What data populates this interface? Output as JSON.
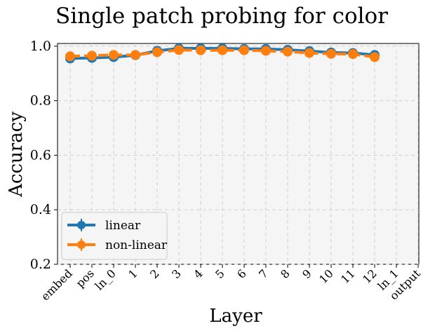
{
  "chart_data": {
    "type": "line",
    "title": "Single patch probing for color",
    "xlabel": "Layer",
    "ylabel": "Accuracy",
    "categories": [
      "embed",
      "pos",
      "ln_0",
      "1",
      "2",
      "3",
      "4",
      "5",
      "6",
      "7",
      "8",
      "9",
      "10",
      "11",
      "12",
      "ln_1",
      "output"
    ],
    "ylim": [
      0.2,
      1.01
    ],
    "yticks": [
      "0.2",
      "0.4",
      "0.6",
      "0.8",
      "1.0"
    ],
    "grid": true,
    "legend_position": "lower-left",
    "series": [
      {
        "name": "linear",
        "color": "#1f77b4",
        "values": [
          0.955,
          0.957,
          0.96,
          0.967,
          0.983,
          0.992,
          0.992,
          0.992,
          0.99,
          0.99,
          0.987,
          0.982,
          0.977,
          0.975,
          0.968,
          null,
          null
        ]
      },
      {
        "name": "non-linear",
        "color": "#ff7f0e",
        "values": [
          0.963,
          0.965,
          0.968,
          0.968,
          0.978,
          0.986,
          0.985,
          0.985,
          0.985,
          0.983,
          0.98,
          0.975,
          0.972,
          0.971,
          0.96,
          null,
          null
        ]
      }
    ]
  }
}
